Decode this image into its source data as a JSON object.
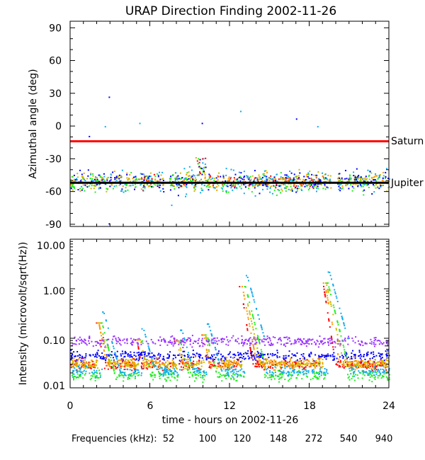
{
  "chart_data": [
    {
      "type": "scatter",
      "title": "URAP Direction Finding  2002-11-26",
      "ylabel": "Azimuthal angle (deg)",
      "xlim": [
        0,
        24
      ],
      "ylim": [
        -92,
        96
      ],
      "yticks": [
        90,
        60,
        30,
        0,
        -30,
        -60,
        -90
      ],
      "reference_lines": [
        {
          "name": "Saturn",
          "value": -14,
          "color": "#ff0000"
        },
        {
          "name": "Jupiter",
          "value": -52,
          "color": "#000000"
        }
      ],
      "series": [
        {
          "name": "52",
          "color": "#ff0000",
          "approx_center": -51,
          "scatter": 4
        },
        {
          "name": "100",
          "color": "#ff9900",
          "approx_center": -50,
          "scatter": 5
        },
        {
          "name": "120",
          "color": "#ccbb00",
          "approx_center": -50,
          "scatter": 6
        },
        {
          "name": "148",
          "color": "#22ee22",
          "approx_center": -52,
          "scatter": 6
        },
        {
          "name": "272",
          "color": "#11aaee",
          "approx_center": -50,
          "scatter": 8
        },
        {
          "name": "540",
          "color": "#0000ff",
          "approx_center": -50,
          "scatter": 6
        }
      ],
      "outliers": [
        {
          "x": 1.4,
          "y": -9
        },
        {
          "x": 2.6,
          "y": 0
        },
        {
          "x": 2.9,
          "y": 27
        },
        {
          "x": 5.2,
          "y": 3
        },
        {
          "x": 9.9,
          "y": 3
        },
        {
          "x": 12.8,
          "y": 14
        },
        {
          "x": 17.0,
          "y": 7
        },
        {
          "x": 18.6,
          "y": 0
        },
        {
          "x": 2.9,
          "y": -89
        },
        {
          "x": 7.6,
          "y": -72
        },
        {
          "x": 8.1,
          "y": -63
        }
      ],
      "data_gaps": [
        [
          7.0,
          7.4
        ],
        [
          19.6,
          20.1
        ]
      ]
    },
    {
      "type": "scatter",
      "ylabel": "Intensity (microvolt/sqrt(Hz))",
      "xlabel": "time - hours on 2002-11-26",
      "xlim": [
        0,
        24
      ],
      "xticks": [
        0,
        6,
        12,
        18,
        24
      ],
      "yscale": "log",
      "ylim": [
        0.01,
        10.0
      ],
      "yticks": [
        "10.00",
        "1.00",
        "0.10",
        "0.01"
      ],
      "burst_peaks": [
        {
          "x": 2.0,
          "y": 0.35
        },
        {
          "x": 5.0,
          "y": 0.2
        },
        {
          "x": 7.9,
          "y": 0.15
        },
        {
          "x": 9.9,
          "y": 0.25
        },
        {
          "x": 12.8,
          "y": 1.9
        },
        {
          "x": 19.0,
          "y": 2.8
        }
      ],
      "series": [
        {
          "name": "52",
          "color": "#ff0000",
          "baseline": 0.03
        },
        {
          "name": "100",
          "color": "#ff9900",
          "baseline": 0.033
        },
        {
          "name": "120",
          "color": "#ccbb00",
          "baseline": 0.03
        },
        {
          "name": "148",
          "color": "#22ee22",
          "baseline": 0.018
        },
        {
          "name": "272",
          "color": "#11aaee",
          "baseline": 0.022
        },
        {
          "name": "540",
          "color": "#0000ff",
          "baseline": 0.045
        },
        {
          "name": "940",
          "color": "#9933ff",
          "baseline": 0.09
        }
      ]
    }
  ],
  "legend": {
    "label": "Frequencies (kHz):",
    "items": [
      {
        "text": "52",
        "color": "#ff0000"
      },
      {
        "text": "100",
        "color": "#ff9900"
      },
      {
        "text": "120",
        "color": "#ccbb00"
      },
      {
        "text": "148",
        "color": "#22ee22"
      },
      {
        "text": "272",
        "color": "#11aaee"
      },
      {
        "text": "540",
        "color": "#0000ff"
      },
      {
        "text": "940",
        "color": "#9933ff"
      }
    ]
  }
}
